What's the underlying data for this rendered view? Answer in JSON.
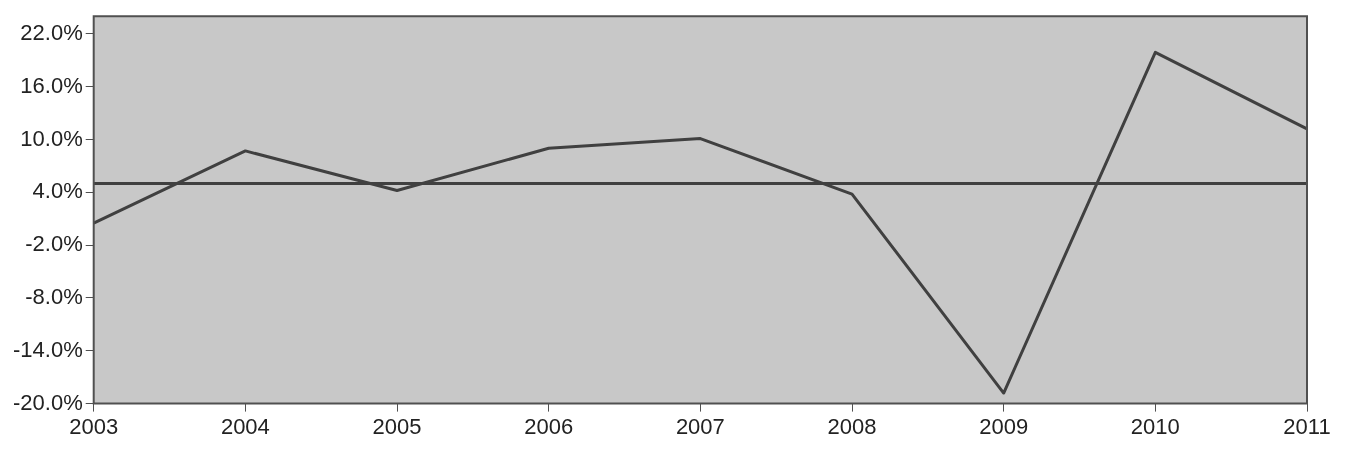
{
  "chart_data": {
    "type": "line",
    "categories": [
      "2003",
      "2004",
      "2005",
      "2006",
      "2007",
      "2008",
      "2009",
      "2010",
      "2011"
    ],
    "series": [
      {
        "color": "#404040",
        "values": [
          0.5,
          8.7,
          4.2,
          9.0,
          10.1,
          3.8,
          -18.8,
          19.9,
          11.2
        ]
      }
    ],
    "ylim": [
      -20,
      24
    ],
    "yticks": [
      {
        "value": -20,
        "label": "-20.0%"
      },
      {
        "value": -14,
        "label": "-14.0%"
      },
      {
        "value": -8,
        "label": "-8.0%"
      },
      {
        "value": -2,
        "label": "-2.0%"
      },
      {
        "value": 4,
        "label": "4.0%"
      },
      {
        "value": 10,
        "label": "10.0%"
      },
      {
        "value": 16,
        "label": "16.0%"
      },
      {
        "value": 22,
        "label": "22.0%"
      }
    ],
    "ref_lines": [
      {
        "axis": "y",
        "value": 5.0,
        "color": "#404040"
      }
    ],
    "grid": false,
    "legend": false,
    "marker": "none",
    "line_style": "solid"
  }
}
